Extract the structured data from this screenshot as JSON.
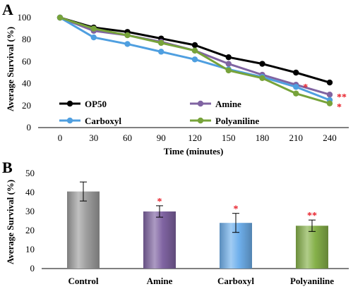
{
  "chart_data": [
    {
      "type": "line",
      "panel_label": "A",
      "xlabel": "Time (minutes)",
      "ylabel": "Average Survival (%)",
      "x": [
        0,
        30,
        60,
        90,
        120,
        150,
        180,
        210,
        240
      ],
      "ylim": [
        0,
        100
      ],
      "yticks": [
        0,
        20,
        40,
        60,
        80,
        100
      ],
      "grid": false,
      "legend_position": "bottom-left",
      "series": [
        {
          "name": "OP50",
          "color": "#000000",
          "values": [
            100,
            91,
            87,
            81,
            75,
            64,
            58,
            50,
            41
          ]
        },
        {
          "name": "Amine",
          "color": "#8064a2",
          "values": [
            100,
            88,
            84,
            78,
            70,
            58,
            48,
            39,
            30
          ]
        },
        {
          "name": "Carboxyl",
          "color": "#4f9fe0",
          "values": [
            100,
            82,
            76,
            69,
            62,
            53,
            46,
            37,
            25
          ]
        },
        {
          "name": "Polyaniline",
          "color": "#77a33a",
          "values": [
            100,
            90,
            84,
            77,
            70,
            52,
            45,
            31,
            22
          ]
        }
      ],
      "annotations": [
        {
          "text": "*",
          "x": 210,
          "y": 39,
          "color": "#e8202a"
        },
        {
          "text": "**",
          "x": 240,
          "y": 30,
          "color": "#e8202a"
        },
        {
          "text": "*",
          "x": 240,
          "y": 21,
          "color": "#e8202a"
        }
      ]
    },
    {
      "type": "bar",
      "panel_label": "B",
      "xlabel": "",
      "ylabel": "Average Survival (%)",
      "categories": [
        "Control",
        "Amine",
        "Carboxyl",
        "Polyaniline"
      ],
      "values": [
        40.5,
        30,
        24,
        22.5
      ],
      "errors": [
        5,
        3,
        5,
        3
      ],
      "colors": [
        "#9e9e9e",
        "#8064a2",
        "#6fb0ec",
        "#86b14a"
      ],
      "significance": [
        "",
        "*",
        "*",
        "**"
      ],
      "ylim": [
        0,
        50
      ],
      "yticks": [
        0,
        10,
        20,
        30,
        40,
        50
      ],
      "grid": false
    }
  ]
}
